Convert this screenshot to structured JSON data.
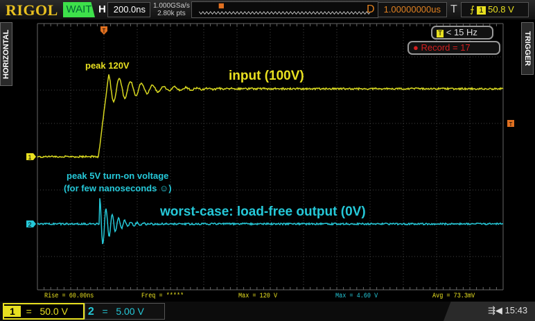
{
  "header": {
    "brand": "RIGOL",
    "run_status": "WAIT",
    "horizontal_label": "H",
    "timebase": "200.0ns",
    "sample_rate": "1.000GSa/s",
    "memory_depth": "2.80k pts",
    "delay_label": "D",
    "delay": "1.00000000us",
    "trigger_label": "T",
    "trigger_source": "1",
    "trigger_level": "50.8 V"
  },
  "side_tabs": {
    "left": "HORIZONTAL",
    "right": "TRIGGER"
  },
  "status_pills": {
    "trigger_freq": "< 15 Hz",
    "trigger_icon": "T",
    "record": "Record = 17"
  },
  "annotations": {
    "ch1_peak": "peak 120V",
    "ch1_label": "input (100V)",
    "ch2_peak_line1": "peak 5V turn-on voltage",
    "ch2_peak_line2": "(for few nanoseconds ☺)",
    "ch2_label": "worst-case: load-free output (0V)"
  },
  "markers": {
    "ch1": "1",
    "ch2": "2",
    "trigger": "T"
  },
  "measurements": [
    {
      "text": "Rise = 60.00ns",
      "color": "#e8e020"
    },
    {
      "text": "Freq = *****",
      "color": "#e8e020"
    },
    {
      "text": "Max = 120 V",
      "color": "#e8e020"
    },
    {
      "text": "Max = 4.60 V",
      "color": "#25c8d8"
    },
    {
      "text": "Avg = 73.3mV",
      "color": "#e8e020"
    }
  ],
  "channels": [
    {
      "number": "1",
      "coupling": "=",
      "scale": "50.0 V",
      "color": "#e8e020",
      "active": true
    },
    {
      "number": "2",
      "coupling": "=",
      "scale": "5.00 V",
      "color": "#25c8d8",
      "active": false
    }
  ],
  "status": {
    "usb_icon": "usb-icon",
    "speaker_icon": "speaker-icon",
    "clock": "15:43"
  }
}
